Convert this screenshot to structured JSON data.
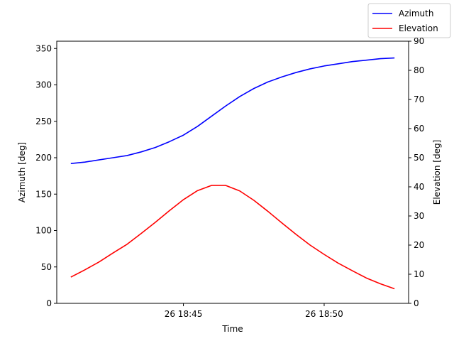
{
  "chart_data": {
    "type": "line",
    "title": "",
    "xlabel": "Time",
    "ylabel_left": "Azimuth [deg]",
    "ylabel_right": "Elevation [deg]",
    "x_minutes": [
      -4,
      -3.5,
      -3,
      -2.5,
      -2,
      -1.5,
      -1,
      -0.5,
      0,
      0.5,
      1,
      1.5,
      2,
      2.5,
      3,
      3.5,
      4,
      4.5,
      5,
      5.5,
      6,
      6.5,
      7,
      7.5
    ],
    "x_range_minutes": [
      -4.5,
      8
    ],
    "x_ticks": [
      {
        "minute": 0,
        "label": "26 18:45"
      },
      {
        "minute": 5,
        "label": "26 18:50"
      }
    ],
    "ylim_left": [
      0,
      360
    ],
    "yticks_left": [
      0,
      50,
      100,
      150,
      200,
      250,
      300,
      350
    ],
    "ylim_right": [
      0,
      90
    ],
    "yticks_right": [
      0,
      10,
      20,
      30,
      40,
      50,
      60,
      70,
      80,
      90
    ],
    "grid": false,
    "legend_position": "top-right",
    "series": [
      {
        "name": "Azimuth",
        "axis": "left",
        "color": "#0000ff",
        "values": [
          192,
          194,
          197,
          200,
          203,
          208,
          214,
          222,
          231,
          243,
          257,
          271,
          284,
          295,
          304,
          311,
          317,
          322,
          326,
          329,
          332,
          334,
          336,
          337
        ]
      },
      {
        "name": "Elevation",
        "axis": "right",
        "color": "#ff0000",
        "values": [
          9,
          11.5,
          14.2,
          17.3,
          20.3,
          24.0,
          27.8,
          31.8,
          35.6,
          38.7,
          40.5,
          40.5,
          38.6,
          35.4,
          31.6,
          27.6,
          23.7,
          20.0,
          16.8,
          13.8,
          11.2,
          8.7,
          6.7,
          5
        ]
      }
    ]
  }
}
